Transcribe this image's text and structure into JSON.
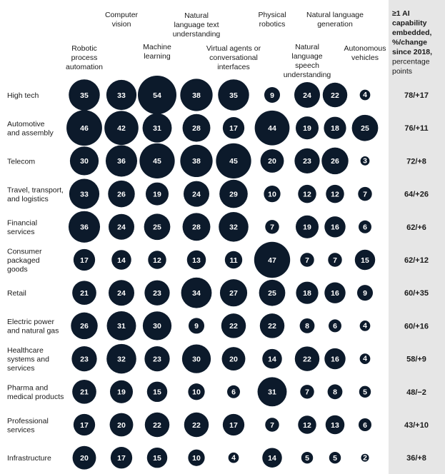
{
  "chart_data": {
    "type": "bubble-matrix",
    "columns": [
      "Robotic process automation",
      "Computer vision",
      "Machine learning",
      "Natural language text understanding",
      "Virtual agents or conversational interfaces",
      "Physical robotics",
      "Natural language speech understanding",
      "Natural language generation",
      "Autonomous vehicles"
    ],
    "column_header_lines": [
      [
        "Robotic",
        "process",
        "automation"
      ],
      [
        "Computer",
        "vision"
      ],
      [
        "Machine",
        "learning"
      ],
      [
        "Natural",
        "language text",
        "understanding"
      ],
      [
        "Virtual agents or",
        "conversational",
        "interfaces"
      ],
      [
        "Physical",
        "robotics"
      ],
      [
        "Natural",
        "language",
        "speech",
        "understanding"
      ],
      [
        "Natural language",
        "generation"
      ],
      [
        "Autonomous",
        "vehicles"
      ]
    ],
    "right_header_lines": [
      "≥1 AI",
      "capability",
      "embedded,",
      "%/change",
      "since 2018,",
      "percentage",
      "points"
    ],
    "right_header_bold_lines": 5,
    "rows": [
      {
        "label": "High tech",
        "label_lines": [
          "High tech"
        ],
        "values": [
          35,
          33,
          54,
          38,
          35,
          9,
          24,
          22,
          4
        ],
        "summary": "78/+17"
      },
      {
        "label": "Automotive and assembly",
        "label_lines": [
          "Automotive",
          "and assembly"
        ],
        "values": [
          46,
          42,
          31,
          28,
          17,
          44,
          19,
          18,
          25
        ],
        "summary": "76/+11"
      },
      {
        "label": "Telecom",
        "label_lines": [
          "Telecom"
        ],
        "values": [
          30,
          36,
          45,
          38,
          45,
          20,
          23,
          26,
          3
        ],
        "summary": "72/+8"
      },
      {
        "label": "Travel, transport, and logistics",
        "label_lines": [
          "Travel, transport,",
          "and logistics"
        ],
        "values": [
          33,
          26,
          19,
          24,
          29,
          10,
          12,
          12,
          7
        ],
        "summary": "64/+26"
      },
      {
        "label": "Financial services",
        "label_lines": [
          "Financial",
          "services"
        ],
        "values": [
          36,
          24,
          25,
          28,
          32,
          7,
          19,
          16,
          6
        ],
        "summary": "62/+6"
      },
      {
        "label": "Consumer packaged goods",
        "label_lines": [
          "Consumer",
          "packaged",
          "goods"
        ],
        "values": [
          17,
          14,
          12,
          13,
          11,
          47,
          7,
          7,
          15
        ],
        "summary": "62/+12"
      },
      {
        "label": "Retail",
        "label_lines": [
          "Retail"
        ],
        "values": [
          21,
          24,
          23,
          34,
          27,
          25,
          18,
          16,
          9
        ],
        "summary": "60/+35"
      },
      {
        "label": "Electric power and natural gas",
        "label_lines": [
          "Electric power",
          "and natural gas"
        ],
        "values": [
          26,
          31,
          30,
          9,
          22,
          22,
          8,
          6,
          4
        ],
        "summary": "60/+16"
      },
      {
        "label": "Healthcare systems and services",
        "label_lines": [
          "Healthcare",
          "systems and",
          "services"
        ],
        "values": [
          23,
          32,
          23,
          30,
          20,
          14,
          22,
          16,
          4
        ],
        "summary": "58/+9"
      },
      {
        "label": "Pharma and medical products",
        "label_lines": [
          "Pharma and",
          "medical products"
        ],
        "values": [
          21,
          19,
          15,
          10,
          6,
          31,
          7,
          8,
          5
        ],
        "summary": "48/−2"
      },
      {
        "label": "Professional services",
        "label_lines": [
          "Professional",
          "services"
        ],
        "values": [
          17,
          20,
          22,
          22,
          17,
          7,
          12,
          13,
          6
        ],
        "summary": "43/+10"
      },
      {
        "label": "Infrastructure",
        "label_lines": [
          "Infrastructure"
        ],
        "values": [
          20,
          17,
          15,
          10,
          4,
          14,
          5,
          5,
          2
        ],
        "summary": "36/+8"
      }
    ]
  }
}
